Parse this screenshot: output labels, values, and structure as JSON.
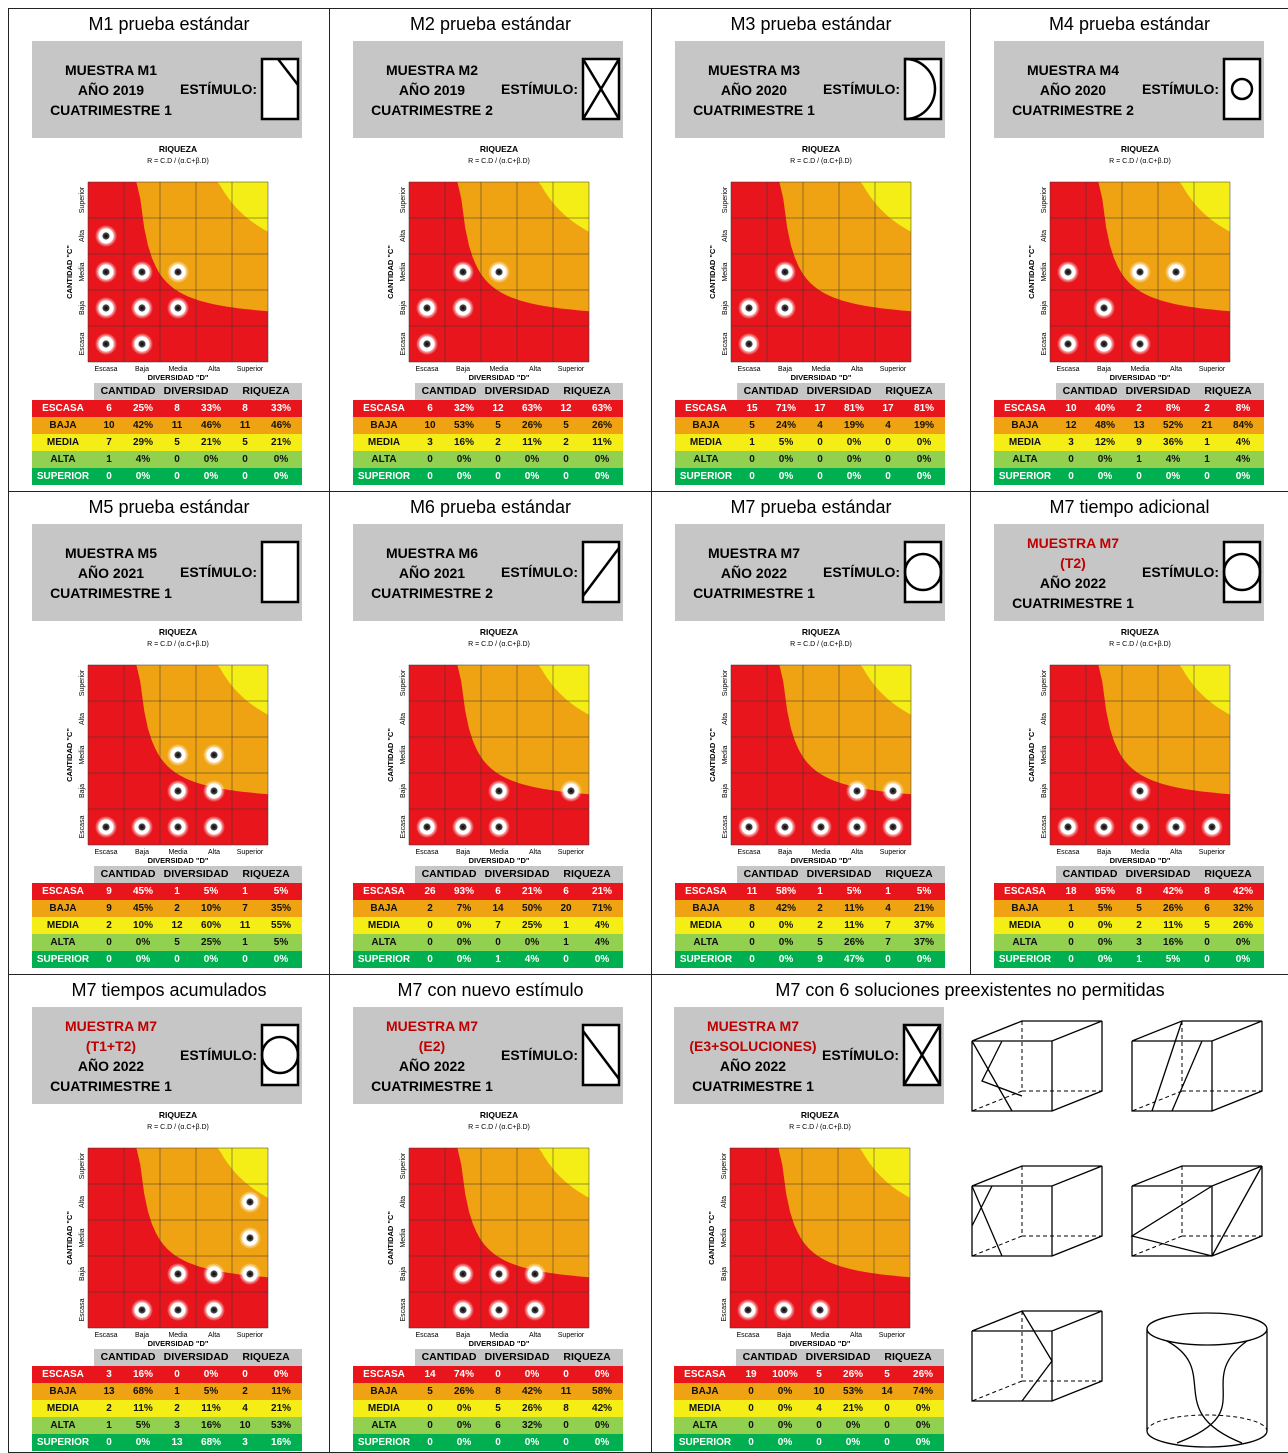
{
  "common": {
    "muestra_word": "MUESTRA",
    "stim_label": "ESTÍMULO:",
    "chart_title": "RIQUEZA",
    "chart_formula": "R = C.D / (α.C+β.D)",
    "x_label": "DIVERSIDAD \"D\"",
    "y_label": "CANTIDAD \"C\"",
    "levels": [
      "Escasa",
      "Baja",
      "Media",
      "Alta",
      "Superior"
    ],
    "table_headers": [
      "CANTIDAD",
      "DIVERSIDAD",
      "RIQUEZA"
    ],
    "row_labels": [
      "ESCASA",
      "BAJA",
      "MEDIA",
      "ALTA",
      "SUPERIOR"
    ]
  },
  "colors": {
    "escasa": "#e8161c",
    "baja": "#f0a312",
    "media": "#f5ee16",
    "alta": "#92d050",
    "superior": "#00b050",
    "header_gray": "#c6c6c6",
    "highlight_red": "#c00000"
  },
  "panels": [
    {
      "title": "M1 prueba estándar",
      "header_lines": [
        {
          "text": "MUESTRA M1",
          "red": false
        },
        {
          "text": "AÑO 2019",
          "red": false
        },
        {
          "text": "CUATRIMESTRE 1",
          "red": false
        }
      ],
      "stimulus": "diagonal-corner-icon",
      "table": [
        [
          6,
          "25%",
          8,
          "33%",
          8,
          "33%"
        ],
        [
          10,
          "42%",
          11,
          "46%",
          11,
          "46%"
        ],
        [
          7,
          "29%",
          5,
          "21%",
          5,
          "21%"
        ],
        [
          1,
          "4%",
          0,
          "0%",
          0,
          "0%"
        ],
        [
          0,
          "0%",
          0,
          "0%",
          0,
          "0%"
        ]
      ]
    },
    {
      "title": "M2 prueba estándar",
      "header_lines": [
        {
          "text": "MUESTRA M2",
          "red": false
        },
        {
          "text": "AÑO 2019",
          "red": false
        },
        {
          "text": "CUATRIMESTRE 2",
          "red": false
        }
      ],
      "stimulus": "x-cross-icon",
      "table": [
        [
          6,
          "32%",
          12,
          "63%",
          12,
          "63%"
        ],
        [
          10,
          "53%",
          5,
          "26%",
          5,
          "26%"
        ],
        [
          3,
          "16%",
          2,
          "11%",
          2,
          "11%"
        ],
        [
          0,
          "0%",
          0,
          "0%",
          0,
          "0%"
        ],
        [
          0,
          "0%",
          0,
          "0%",
          0,
          "0%"
        ]
      ]
    },
    {
      "title": "M3 prueba estándar",
      "header_lines": [
        {
          "text": "MUESTRA M3",
          "red": false
        },
        {
          "text": "AÑO 2020",
          "red": false
        },
        {
          "text": "CUATRIMESTRE 1",
          "red": false
        }
      ],
      "stimulus": "half-circle-icon",
      "table": [
        [
          15,
          "71%",
          17,
          "81%",
          17,
          "81%"
        ],
        [
          5,
          "24%",
          4,
          "19%",
          4,
          "19%"
        ],
        [
          1,
          "5%",
          0,
          "0%",
          0,
          "0%"
        ],
        [
          0,
          "0%",
          0,
          "0%",
          0,
          "0%"
        ],
        [
          0,
          "0%",
          0,
          "0%",
          0,
          "0%"
        ]
      ]
    },
    {
      "title": "M4 prueba estándar",
      "header_lines": [
        {
          "text": "MUESTRA M4",
          "red": false
        },
        {
          "text": "AÑO 2020",
          "red": false
        },
        {
          "text": "CUATRIMESTRE 2",
          "red": false
        }
      ],
      "stimulus": "small-circle-icon",
      "table": [
        [
          10,
          "40%",
          2,
          "8%",
          2,
          "8%"
        ],
        [
          12,
          "48%",
          13,
          "52%",
          21,
          "84%"
        ],
        [
          3,
          "12%",
          9,
          "36%",
          1,
          "4%"
        ],
        [
          0,
          "0%",
          1,
          "4%",
          1,
          "4%"
        ],
        [
          0,
          "0%",
          0,
          "0%",
          0,
          "0%"
        ]
      ]
    },
    {
      "title": "M5 prueba estándar",
      "header_lines": [
        {
          "text": "MUESTRA M5",
          "red": false
        },
        {
          "text": "AÑO 2021",
          "red": false
        },
        {
          "text": "CUATRIMESTRE 1",
          "red": false
        }
      ],
      "stimulus": "empty-rectangle-icon",
      "table": [
        [
          9,
          "45%",
          1,
          "5%",
          1,
          "5%"
        ],
        [
          9,
          "45%",
          2,
          "10%",
          7,
          "35%"
        ],
        [
          2,
          "10%",
          12,
          "60%",
          11,
          "55%"
        ],
        [
          0,
          "0%",
          5,
          "25%",
          1,
          "5%"
        ],
        [
          0,
          "0%",
          0,
          "0%",
          0,
          "0%"
        ]
      ]
    },
    {
      "title": "M6 prueba estándar",
      "header_lines": [
        {
          "text": "MUESTRA M6",
          "red": false
        },
        {
          "text": "AÑO 2021",
          "red": false
        },
        {
          "text": "CUATRIMESTRE 2",
          "red": false
        }
      ],
      "stimulus": "diagonal-slash-icon",
      "table": [
        [
          26,
          "93%",
          6,
          "21%",
          6,
          "21%"
        ],
        [
          2,
          "7%",
          14,
          "50%",
          20,
          "71%"
        ],
        [
          0,
          "0%",
          7,
          "25%",
          1,
          "4%"
        ],
        [
          0,
          "0%",
          0,
          "0%",
          1,
          "4%"
        ],
        [
          0,
          "0%",
          1,
          "4%",
          0,
          "0%"
        ]
      ]
    },
    {
      "title": "M7 prueba estándar",
      "header_lines": [
        {
          "text": "MUESTRA M7",
          "red": false
        },
        {
          "text": "AÑO 2022",
          "red": false
        },
        {
          "text": "CUATRIMESTRE 1",
          "red": false
        }
      ],
      "stimulus": "circle-icon",
      "table": [
        [
          11,
          "58%",
          1,
          "5%",
          1,
          "5%"
        ],
        [
          8,
          "42%",
          2,
          "11%",
          4,
          "21%"
        ],
        [
          0,
          "0%",
          2,
          "11%",
          7,
          "37%"
        ],
        [
          0,
          "0%",
          5,
          "26%",
          7,
          "37%"
        ],
        [
          0,
          "0%",
          9,
          "47%",
          0,
          "0%"
        ]
      ]
    },
    {
      "title": "M7 tiempo adicional",
      "header_lines": [
        {
          "text": "MUESTRA M7",
          "red": true
        },
        {
          "text": "(T2)",
          "red": true
        },
        {
          "text": "AÑO 2022",
          "red": false
        },
        {
          "text": "CUATRIMESTRE 1",
          "red": false
        }
      ],
      "stimulus": "circle-icon",
      "table": [
        [
          18,
          "95%",
          8,
          "42%",
          8,
          "42%"
        ],
        [
          1,
          "5%",
          5,
          "26%",
          6,
          "32%"
        ],
        [
          0,
          "0%",
          2,
          "11%",
          5,
          "26%"
        ],
        [
          0,
          "0%",
          3,
          "16%",
          0,
          "0%"
        ],
        [
          0,
          "0%",
          1,
          "5%",
          0,
          "0%"
        ]
      ]
    },
    {
      "title": "M7 tiempos acumulados",
      "header_lines": [
        {
          "text": "MUESTRA M7",
          "red": true
        },
        {
          "text": "(T1+T2)",
          "red": true
        },
        {
          "text": "AÑO 2022",
          "red": false
        },
        {
          "text": "CUATRIMESTRE 1",
          "red": false
        }
      ],
      "stimulus": "circle-icon",
      "table": [
        [
          3,
          "16%",
          0,
          "0%",
          0,
          "0%"
        ],
        [
          13,
          "68%",
          1,
          "5%",
          2,
          "11%"
        ],
        [
          2,
          "11%",
          2,
          "11%",
          4,
          "21%"
        ],
        [
          1,
          "5%",
          3,
          "16%",
          10,
          "53%"
        ],
        [
          0,
          "0%",
          13,
          "68%",
          3,
          "16%"
        ]
      ]
    },
    {
      "title": "M7 con nuevo estímulo",
      "header_lines": [
        {
          "text": "MUESTRA M7",
          "red": true
        },
        {
          "text": "(E2)",
          "red": true
        },
        {
          "text": "AÑO 2022",
          "red": false
        },
        {
          "text": "CUATRIMESTRE 1",
          "red": false
        }
      ],
      "stimulus": "diagonal-backslash-icon",
      "table": [
        [
          14,
          "74%",
          0,
          "0%",
          0,
          "0%"
        ],
        [
          5,
          "26%",
          8,
          "42%",
          11,
          "58%"
        ],
        [
          0,
          "0%",
          5,
          "26%",
          8,
          "42%"
        ],
        [
          0,
          "0%",
          6,
          "32%",
          0,
          "0%"
        ],
        [
          0,
          "0%",
          0,
          "0%",
          0,
          "0%"
        ]
      ]
    },
    {
      "title": "M7 con 6 soluciones preexistentes no permitidas",
      "header_lines": [
        {
          "text": "MUESTRA M7",
          "red": true
        },
        {
          "text": "(E3+SOLUCIONES)",
          "red": true
        },
        {
          "text": "AÑO 2022",
          "red": false
        },
        {
          "text": "CUATRIMESTRE 1",
          "red": false
        }
      ],
      "stimulus": "x-cross-icon",
      "table": [
        [
          19,
          "100%",
          5,
          "26%",
          5,
          "26%"
        ],
        [
          0,
          "0%",
          10,
          "53%",
          14,
          "74%"
        ],
        [
          0,
          "0%",
          4,
          "21%",
          0,
          "0%"
        ],
        [
          0,
          "0%",
          0,
          "0%",
          0,
          "0%"
        ],
        [
          0,
          "0%",
          0,
          "0%",
          0,
          "0%"
        ]
      ]
    }
  ],
  "chart_data": [
    {
      "type": "scatter",
      "title": "RIQUEZA",
      "subtitle": "R = C.D / (α.C+β.D)",
      "xlabel": "DIVERSIDAD \"D\"",
      "ylabel": "CANTIDAD \"C\"",
      "categories": [
        "Escasa",
        "Baja",
        "Media",
        "Alta",
        "Superior"
      ],
      "points": [
        {
          "x": "Escasa",
          "y": "Alta"
        },
        {
          "x": "Escasa",
          "y": "Media"
        },
        {
          "x": "Baja",
          "y": "Media"
        },
        {
          "x": "Media",
          "y": "Media"
        },
        {
          "x": "Escasa",
          "y": "Baja"
        },
        {
          "x": "Baja",
          "y": "Baja"
        },
        {
          "x": "Media",
          "y": "Baja"
        },
        {
          "x": "Escasa",
          "y": "Escasa"
        },
        {
          "x": "Baja",
          "y": "Escasa"
        }
      ]
    },
    {
      "type": "scatter",
      "title": "RIQUEZA",
      "subtitle": "R = C.D / (α.C+β.D)",
      "xlabel": "DIVERSIDAD \"D\"",
      "ylabel": "CANTIDAD \"C\"",
      "categories": [
        "Escasa",
        "Baja",
        "Media",
        "Alta",
        "Superior"
      ],
      "points": [
        {
          "x": "Baja",
          "y": "Media"
        },
        {
          "x": "Media",
          "y": "Media"
        },
        {
          "x": "Escasa",
          "y": "Baja"
        },
        {
          "x": "Baja",
          "y": "Baja"
        },
        {
          "x": "Escasa",
          "y": "Escasa"
        }
      ]
    },
    {
      "type": "scatter",
      "title": "RIQUEZA",
      "subtitle": "R = C.D / (α.C+β.D)",
      "xlabel": "DIVERSIDAD \"D\"",
      "ylabel": "CANTIDAD \"C\"",
      "categories": [
        "Escasa",
        "Baja",
        "Media",
        "Alta",
        "Superior"
      ],
      "points": [
        {
          "x": "Baja",
          "y": "Media"
        },
        {
          "x": "Escasa",
          "y": "Baja"
        },
        {
          "x": "Baja",
          "y": "Baja"
        },
        {
          "x": "Escasa",
          "y": "Escasa"
        }
      ]
    },
    {
      "type": "scatter",
      "title": "RIQUEZA",
      "subtitle": "R = C.D / (α.C+β.D)",
      "xlabel": "DIVERSIDAD \"D\"",
      "ylabel": "CANTIDAD \"C\"",
      "categories": [
        "Escasa",
        "Baja",
        "Media",
        "Alta",
        "Superior"
      ],
      "points": [
        {
          "x": "Escasa",
          "y": "Media"
        },
        {
          "x": "Media",
          "y": "Media"
        },
        {
          "x": "Alta",
          "y": "Media"
        },
        {
          "x": "Baja",
          "y": "Baja"
        },
        {
          "x": "Escasa",
          "y": "Escasa"
        },
        {
          "x": "Baja",
          "y": "Escasa"
        },
        {
          "x": "Media",
          "y": "Escasa"
        }
      ]
    },
    {
      "type": "scatter",
      "title": "RIQUEZA",
      "subtitle": "R = C.D / (α.C+β.D)",
      "xlabel": "DIVERSIDAD \"D\"",
      "ylabel": "CANTIDAD \"C\"",
      "categories": [
        "Escasa",
        "Baja",
        "Media",
        "Alta",
        "Superior"
      ],
      "points": [
        {
          "x": "Media",
          "y": "Media"
        },
        {
          "x": "Alta",
          "y": "Media"
        },
        {
          "x": "Media",
          "y": "Baja"
        },
        {
          "x": "Alta",
          "y": "Baja"
        },
        {
          "x": "Escasa",
          "y": "Escasa"
        },
        {
          "x": "Baja",
          "y": "Escasa"
        },
        {
          "x": "Media",
          "y": "Escasa"
        },
        {
          "x": "Alta",
          "y": "Escasa"
        }
      ]
    },
    {
      "type": "scatter",
      "title": "RIQUEZA",
      "subtitle": "R = C.D / (α.C+β.D)",
      "xlabel": "DIVERSIDAD \"D\"",
      "ylabel": "CANTIDAD \"C\"",
      "categories": [
        "Escasa",
        "Baja",
        "Media",
        "Alta",
        "Superior"
      ],
      "points": [
        {
          "x": "Media",
          "y": "Baja"
        },
        {
          "x": "Superior",
          "y": "Baja"
        },
        {
          "x": "Escasa",
          "y": "Escasa"
        },
        {
          "x": "Baja",
          "y": "Escasa"
        },
        {
          "x": "Media",
          "y": "Escasa"
        }
      ]
    },
    {
      "type": "scatter",
      "title": "RIQUEZA",
      "subtitle": "R = C.D / (α.C+β.D)",
      "xlabel": "DIVERSIDAD \"D\"",
      "ylabel": "CANTIDAD \"C\"",
      "categories": [
        "Escasa",
        "Baja",
        "Media",
        "Alta",
        "Superior"
      ],
      "points": [
        {
          "x": "Alta",
          "y": "Baja"
        },
        {
          "x": "Superior",
          "y": "Baja"
        },
        {
          "x": "Escasa",
          "y": "Escasa"
        },
        {
          "x": "Baja",
          "y": "Escasa"
        },
        {
          "x": "Media",
          "y": "Escasa"
        },
        {
          "x": "Alta",
          "y": "Escasa"
        },
        {
          "x": "Superior",
          "y": "Escasa"
        }
      ]
    },
    {
      "type": "scatter",
      "title": "RIQUEZA",
      "subtitle": "R = C.D / (α.C+β.D)",
      "xlabel": "DIVERSIDAD \"D\"",
      "ylabel": "CANTIDAD \"C\"",
      "categories": [
        "Escasa",
        "Baja",
        "Media",
        "Alta",
        "Superior"
      ],
      "points": [
        {
          "x": "Media",
          "y": "Baja"
        },
        {
          "x": "Escasa",
          "y": "Escasa"
        },
        {
          "x": "Baja",
          "y": "Escasa"
        },
        {
          "x": "Media",
          "y": "Escasa"
        },
        {
          "x": "Alta",
          "y": "Escasa"
        },
        {
          "x": "Superior",
          "y": "Escasa"
        }
      ]
    },
    {
      "type": "scatter",
      "title": "RIQUEZA",
      "subtitle": "R = C.D / (α.C+β.D)",
      "xlabel": "DIVERSIDAD \"D\"",
      "ylabel": "CANTIDAD \"C\"",
      "categories": [
        "Escasa",
        "Baja",
        "Media",
        "Alta",
        "Superior"
      ],
      "points": [
        {
          "x": "Superior",
          "y": "Alta"
        },
        {
          "x": "Superior",
          "y": "Media"
        },
        {
          "x": "Media",
          "y": "Baja"
        },
        {
          "x": "Alta",
          "y": "Baja"
        },
        {
          "x": "Superior",
          "y": "Baja"
        },
        {
          "x": "Baja",
          "y": "Escasa"
        },
        {
          "x": "Media",
          "y": "Escasa"
        },
        {
          "x": "Alta",
          "y": "Escasa"
        }
      ]
    },
    {
      "type": "scatter",
      "title": "RIQUEZA",
      "subtitle": "R = C.D / (α.C+β.D)",
      "xlabel": "DIVERSIDAD \"D\"",
      "ylabel": "CANTIDAD \"C\"",
      "categories": [
        "Escasa",
        "Baja",
        "Media",
        "Alta",
        "Superior"
      ],
      "points": [
        {
          "x": "Baja",
          "y": "Baja"
        },
        {
          "x": "Media",
          "y": "Baja"
        },
        {
          "x": "Alta",
          "y": "Baja"
        },
        {
          "x": "Baja",
          "y": "Escasa"
        },
        {
          "x": "Media",
          "y": "Escasa"
        },
        {
          "x": "Alta",
          "y": "Escasa"
        }
      ]
    },
    {
      "type": "scatter",
      "title": "RIQUEZA",
      "subtitle": "R = C.D / (α.C+β.D)",
      "xlabel": "DIVERSIDAD \"D\"",
      "ylabel": "CANTIDAD \"C\"",
      "categories": [
        "Escasa",
        "Baja",
        "Media",
        "Alta",
        "Superior"
      ],
      "points": [
        {
          "x": "Escasa",
          "y": "Escasa"
        },
        {
          "x": "Baja",
          "y": "Escasa"
        },
        {
          "x": "Media",
          "y": "Escasa"
        }
      ]
    }
  ],
  "solution_drawings": [
    "box-solution-1-icon",
    "box-solution-2-icon",
    "box-solution-3-icon",
    "box-solution-4-icon",
    "box-solution-5-icon",
    "cylinder-solution-icon"
  ]
}
